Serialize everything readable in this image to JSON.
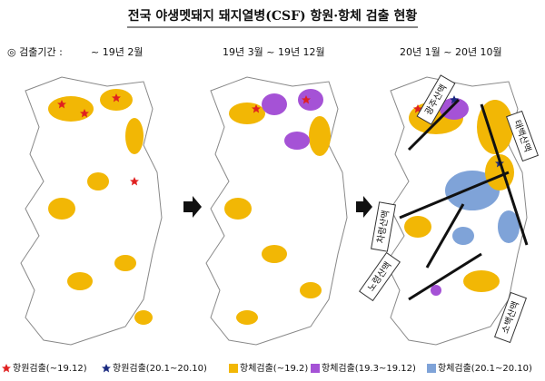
{
  "title": "전국 야생멧돼지 돼지열병(CSF) 항원·항체 검출 현황",
  "period_prefix": "◎ 검출기간 :",
  "periods": [
    "~ 19년 2월",
    "19년 3월 ~ 19년 12월",
    "20년 1월 ~ 20년 10월"
  ],
  "mountains": [
    "광주산맥",
    "태백산맥",
    "차령산맥",
    "노령산맥",
    "소백산맥"
  ],
  "legend": [
    {
      "label": "항원검출(~19.12)",
      "color": "#e02020",
      "shape": "star"
    },
    {
      "label": "항원검출(20.1~20.10)",
      "color": "#1a2a80",
      "shape": "star"
    },
    {
      "label": "항체검출(~19.2)",
      "color": "#f2b705",
      "shape": "square"
    },
    {
      "label": "항체검출(19.3~19.12)",
      "color": "#a552d6",
      "shape": "square"
    },
    {
      "label": "항체검출(20.1~20.10)",
      "color": "#7fa3d8",
      "shape": "square"
    }
  ]
}
